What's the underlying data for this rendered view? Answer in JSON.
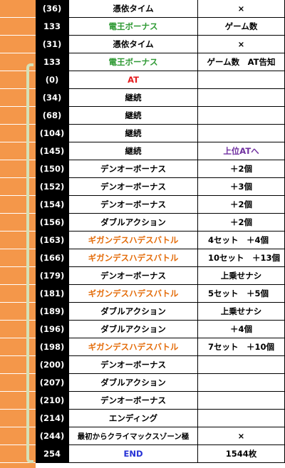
{
  "colors": {
    "orange": "#e46c0a",
    "green": "#2f9a34",
    "red": "#e31a1c",
    "blue": "#2632d6",
    "purple": "#7030a0",
    "black": "#000000",
    "stripe": "#f4974a",
    "bracket": "#d5e1b7"
  },
  "rows": [
    {
      "g": "(36)",
      "event": "憑依タイム",
      "event_color": "black",
      "note": "×",
      "note_color": "black"
    },
    {
      "g": "133",
      "event": "電王ボーナス",
      "event_color": "green",
      "note": "ゲーム数",
      "note_color": "black"
    },
    {
      "g": "(31)",
      "event": "憑依タイム",
      "event_color": "black",
      "note": "×",
      "note_color": "black"
    },
    {
      "g": "133",
      "event": "電王ボーナス",
      "event_color": "green",
      "note": "ゲーム数　AT告知",
      "note_color": "black"
    },
    {
      "g": "(0)",
      "event": "AT",
      "event_color": "red",
      "note": "",
      "note_color": "black"
    },
    {
      "g": "(34)",
      "event": "継続",
      "event_color": "black",
      "note": "",
      "note_color": "black"
    },
    {
      "g": "(68)",
      "event": "継続",
      "event_color": "black",
      "note": "",
      "note_color": "black"
    },
    {
      "g": "(104)",
      "event": "継続",
      "event_color": "black",
      "note": "",
      "note_color": "black"
    },
    {
      "g": "(145)",
      "event": "継続",
      "event_color": "black",
      "note": "上位ATへ",
      "note_color": "purple"
    },
    {
      "g": "(150)",
      "event": "デンオーボーナス",
      "event_color": "black",
      "note": "＋2個",
      "note_color": "black"
    },
    {
      "g": "(152)",
      "event": "デンオーボーナス",
      "event_color": "black",
      "note": "＋3個",
      "note_color": "black"
    },
    {
      "g": "(154)",
      "event": "デンオーボーナス",
      "event_color": "black",
      "note": "＋2個",
      "note_color": "black"
    },
    {
      "g": "(156)",
      "event": "ダブルアクション",
      "event_color": "black",
      "note": "＋2個",
      "note_color": "black"
    },
    {
      "g": "(163)",
      "event": "ギガンデスハデスバトル",
      "event_color": "orange",
      "note": "4セット　＋4個",
      "note_color": "black",
      "note_align": "left"
    },
    {
      "g": "(166)",
      "event": "ギガンデスハデスバトル",
      "event_color": "orange",
      "note": "10セット　＋13個",
      "note_color": "black",
      "note_align": "left"
    },
    {
      "g": "(179)",
      "event": "デンオーボーナス",
      "event_color": "black",
      "note": "上乗せナシ",
      "note_color": "black"
    },
    {
      "g": "(181)",
      "event": "ギガンデスハデスバトル",
      "event_color": "orange",
      "note": "5セット　＋5個",
      "note_color": "black",
      "note_align": "left"
    },
    {
      "g": "(189)",
      "event": "ダブルアクション",
      "event_color": "black",
      "note": "上乗せナシ",
      "note_color": "black"
    },
    {
      "g": "(196)",
      "event": "ダブルアクション",
      "event_color": "black",
      "note": "＋4個",
      "note_color": "black"
    },
    {
      "g": "(198)",
      "event": "ギガンデスハデスバトル",
      "event_color": "orange",
      "note": "7セット　＋10個",
      "note_color": "black",
      "note_align": "left"
    },
    {
      "g": "(200)",
      "event": "デンオーボーナス",
      "event_color": "black",
      "note": "",
      "note_color": "black"
    },
    {
      "g": "(207)",
      "event": "ダブルアクション",
      "event_color": "black",
      "note": "",
      "note_color": "black"
    },
    {
      "g": "(210)",
      "event": "デンオーボーナス",
      "event_color": "black",
      "note": "",
      "note_color": "black"
    },
    {
      "g": "(214)",
      "event": "エンディング",
      "event_color": "black",
      "note": "",
      "note_color": "black"
    },
    {
      "g": "(244)",
      "event": "最初からクライマックスゾーン極",
      "event_color": "black",
      "note": "×",
      "note_color": "black"
    },
    {
      "g": "254",
      "event": "END",
      "event_color": "blue",
      "note": "1544枚",
      "note_color": "black"
    }
  ]
}
